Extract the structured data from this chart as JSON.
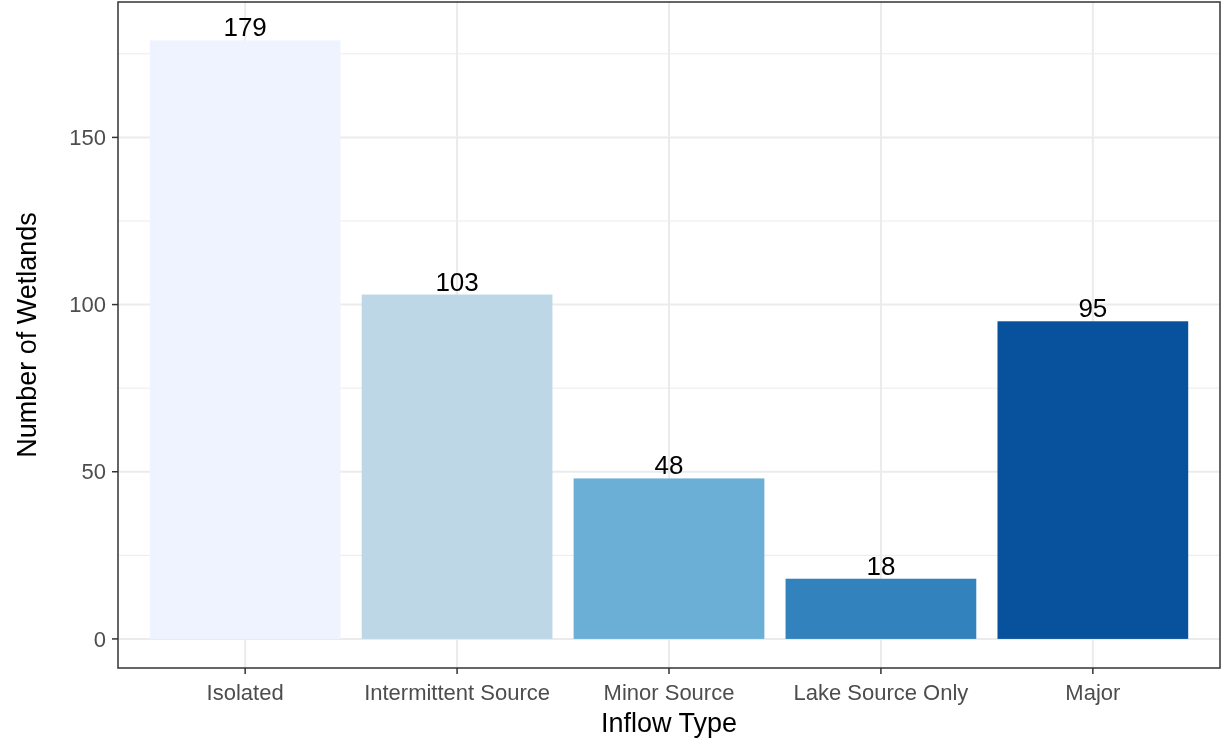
{
  "chart_data": {
    "type": "bar",
    "xlabel": "Inflow Type",
    "ylabel": "Number of Wetlands",
    "categories": [
      "Isolated",
      "Intermittent Source",
      "Minor Source",
      "Lake Source Only",
      "Major"
    ],
    "values": [
      179,
      103,
      48,
      18,
      95
    ],
    "colors": [
      "#eff3ff",
      "#bdd7e7",
      "#6baed6",
      "#3182bd",
      "#08519c"
    ],
    "ylim": [
      -8.7,
      190.5
    ],
    "yticks": [
      0,
      {
        "value": 25,
        "label": null
      },
      50,
      {
        "value": 75,
        "label": null
      },
      100,
      {
        "value": 125,
        "label": null
      },
      150,
      {
        "value": 175,
        "label": null
      }
    ],
    "grid": true,
    "data_labels": true
  }
}
